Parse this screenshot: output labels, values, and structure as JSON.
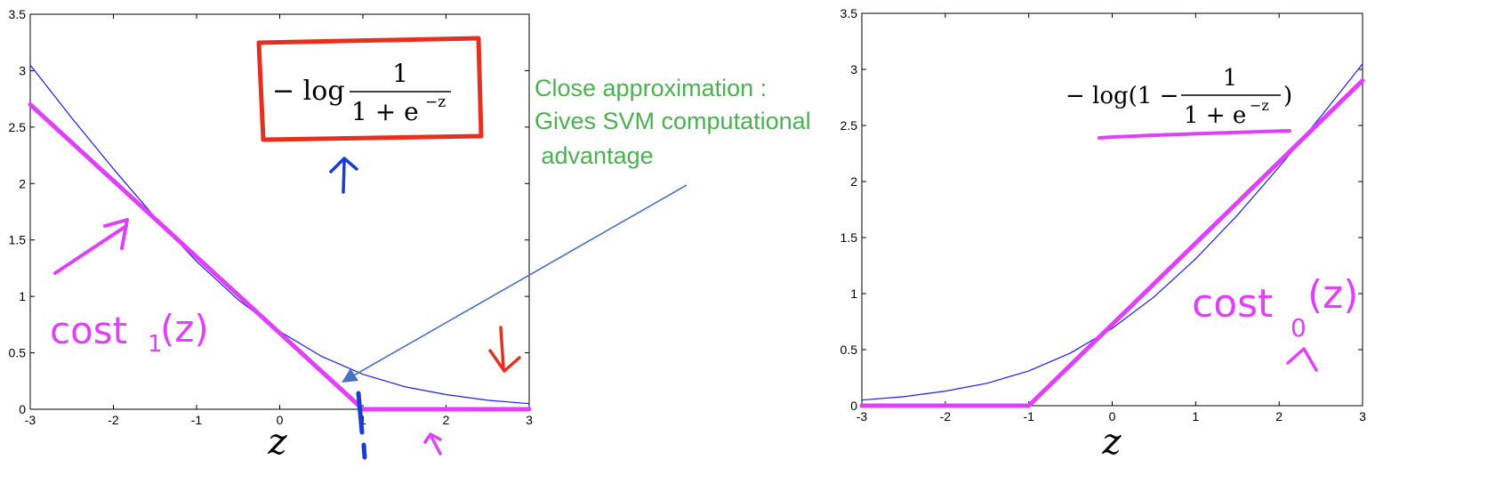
{
  "chart_data": [
    {
      "type": "line",
      "xlabel": "z",
      "xlim": [
        -3,
        3
      ],
      "ylim": [
        0,
        3.5
      ],
      "x_ticks": [
        "-3",
        "-2",
        "-1",
        "0",
        "1",
        "2",
        "3"
      ],
      "y_ticks": [
        "0",
        "0.5",
        "1",
        "1.5",
        "2",
        "2.5",
        "3",
        "3.5"
      ],
      "series": [
        {
          "x": [
            -3,
            -2.5,
            -2,
            -1.5,
            -1,
            -0.5,
            0,
            0.5,
            1,
            1.5,
            2,
            2.5,
            3
          ],
          "values": [
            3.05,
            2.58,
            2.13,
            1.7,
            1.31,
            0.97,
            0.69,
            0.47,
            0.31,
            0.2,
            0.13,
            0.08,
            0.05
          ],
          "color": "#1a1aff"
        },
        {
          "x": [
            -3,
            1,
            3
          ],
          "values": [
            2.7,
            0,
            0
          ],
          "color": "#e040fb"
        }
      ],
      "formula": "− log 1/(1 + e^−z)",
      "formula_parts": {
        "minus_log": "− log",
        "numerator": "1",
        "denominator": "1 + e",
        "exponent": "−z"
      },
      "handwritten_label": "cost₁(z)",
      "handwritten_label_parts": {
        "main": "cost",
        "sub": "1",
        "arg": "(z)"
      }
    },
    {
      "type": "line",
      "xlabel": "z",
      "xlim": [
        -3,
        3
      ],
      "ylim": [
        0,
        3.5
      ],
      "x_ticks": [
        "-3",
        "-2",
        "-1",
        "0",
        "1",
        "2",
        "3"
      ],
      "y_ticks": [
        "0",
        "0.5",
        "1",
        "1.5",
        "2",
        "2.5",
        "3",
        "3.5"
      ],
      "series": [
        {
          "x": [
            -3,
            -2.5,
            -2,
            -1.5,
            -1,
            -0.5,
            0,
            0.5,
            1,
            1.5,
            2,
            2.5,
            3
          ],
          "values": [
            0.05,
            0.08,
            0.13,
            0.2,
            0.31,
            0.47,
            0.69,
            0.97,
            1.31,
            1.7,
            2.13,
            2.58,
            3.05
          ],
          "color": "#1a1aff"
        },
        {
          "x": [
            -3,
            -1,
            3
          ],
          "values": [
            0,
            0,
            2.9
          ],
          "color": "#e040fb"
        }
      ],
      "formula": "− log(1 − 1/(1 + e^−z))",
      "formula_parts": {
        "prefix": "− log(1 −",
        "numerator": "1",
        "denominator": "1 + e",
        "exponent": "−z",
        "suffix": ")"
      },
      "handwritten_label": "cost₀(z)",
      "handwritten_label_parts": {
        "main": "cost",
        "sub": "0",
        "arg": "(z)"
      }
    }
  ],
  "annotation": {
    "lines": [
      "Close approximation :",
      "Gives SVM computational",
      " advantage"
    ],
    "color": "#4caf50",
    "arrow_color": "#4a72c0"
  },
  "colors": {
    "sigmoid_cost": "#1a1aff",
    "svm_cost": "#e040fb",
    "box": "#e53020",
    "marker": "#1a3bd6"
  }
}
